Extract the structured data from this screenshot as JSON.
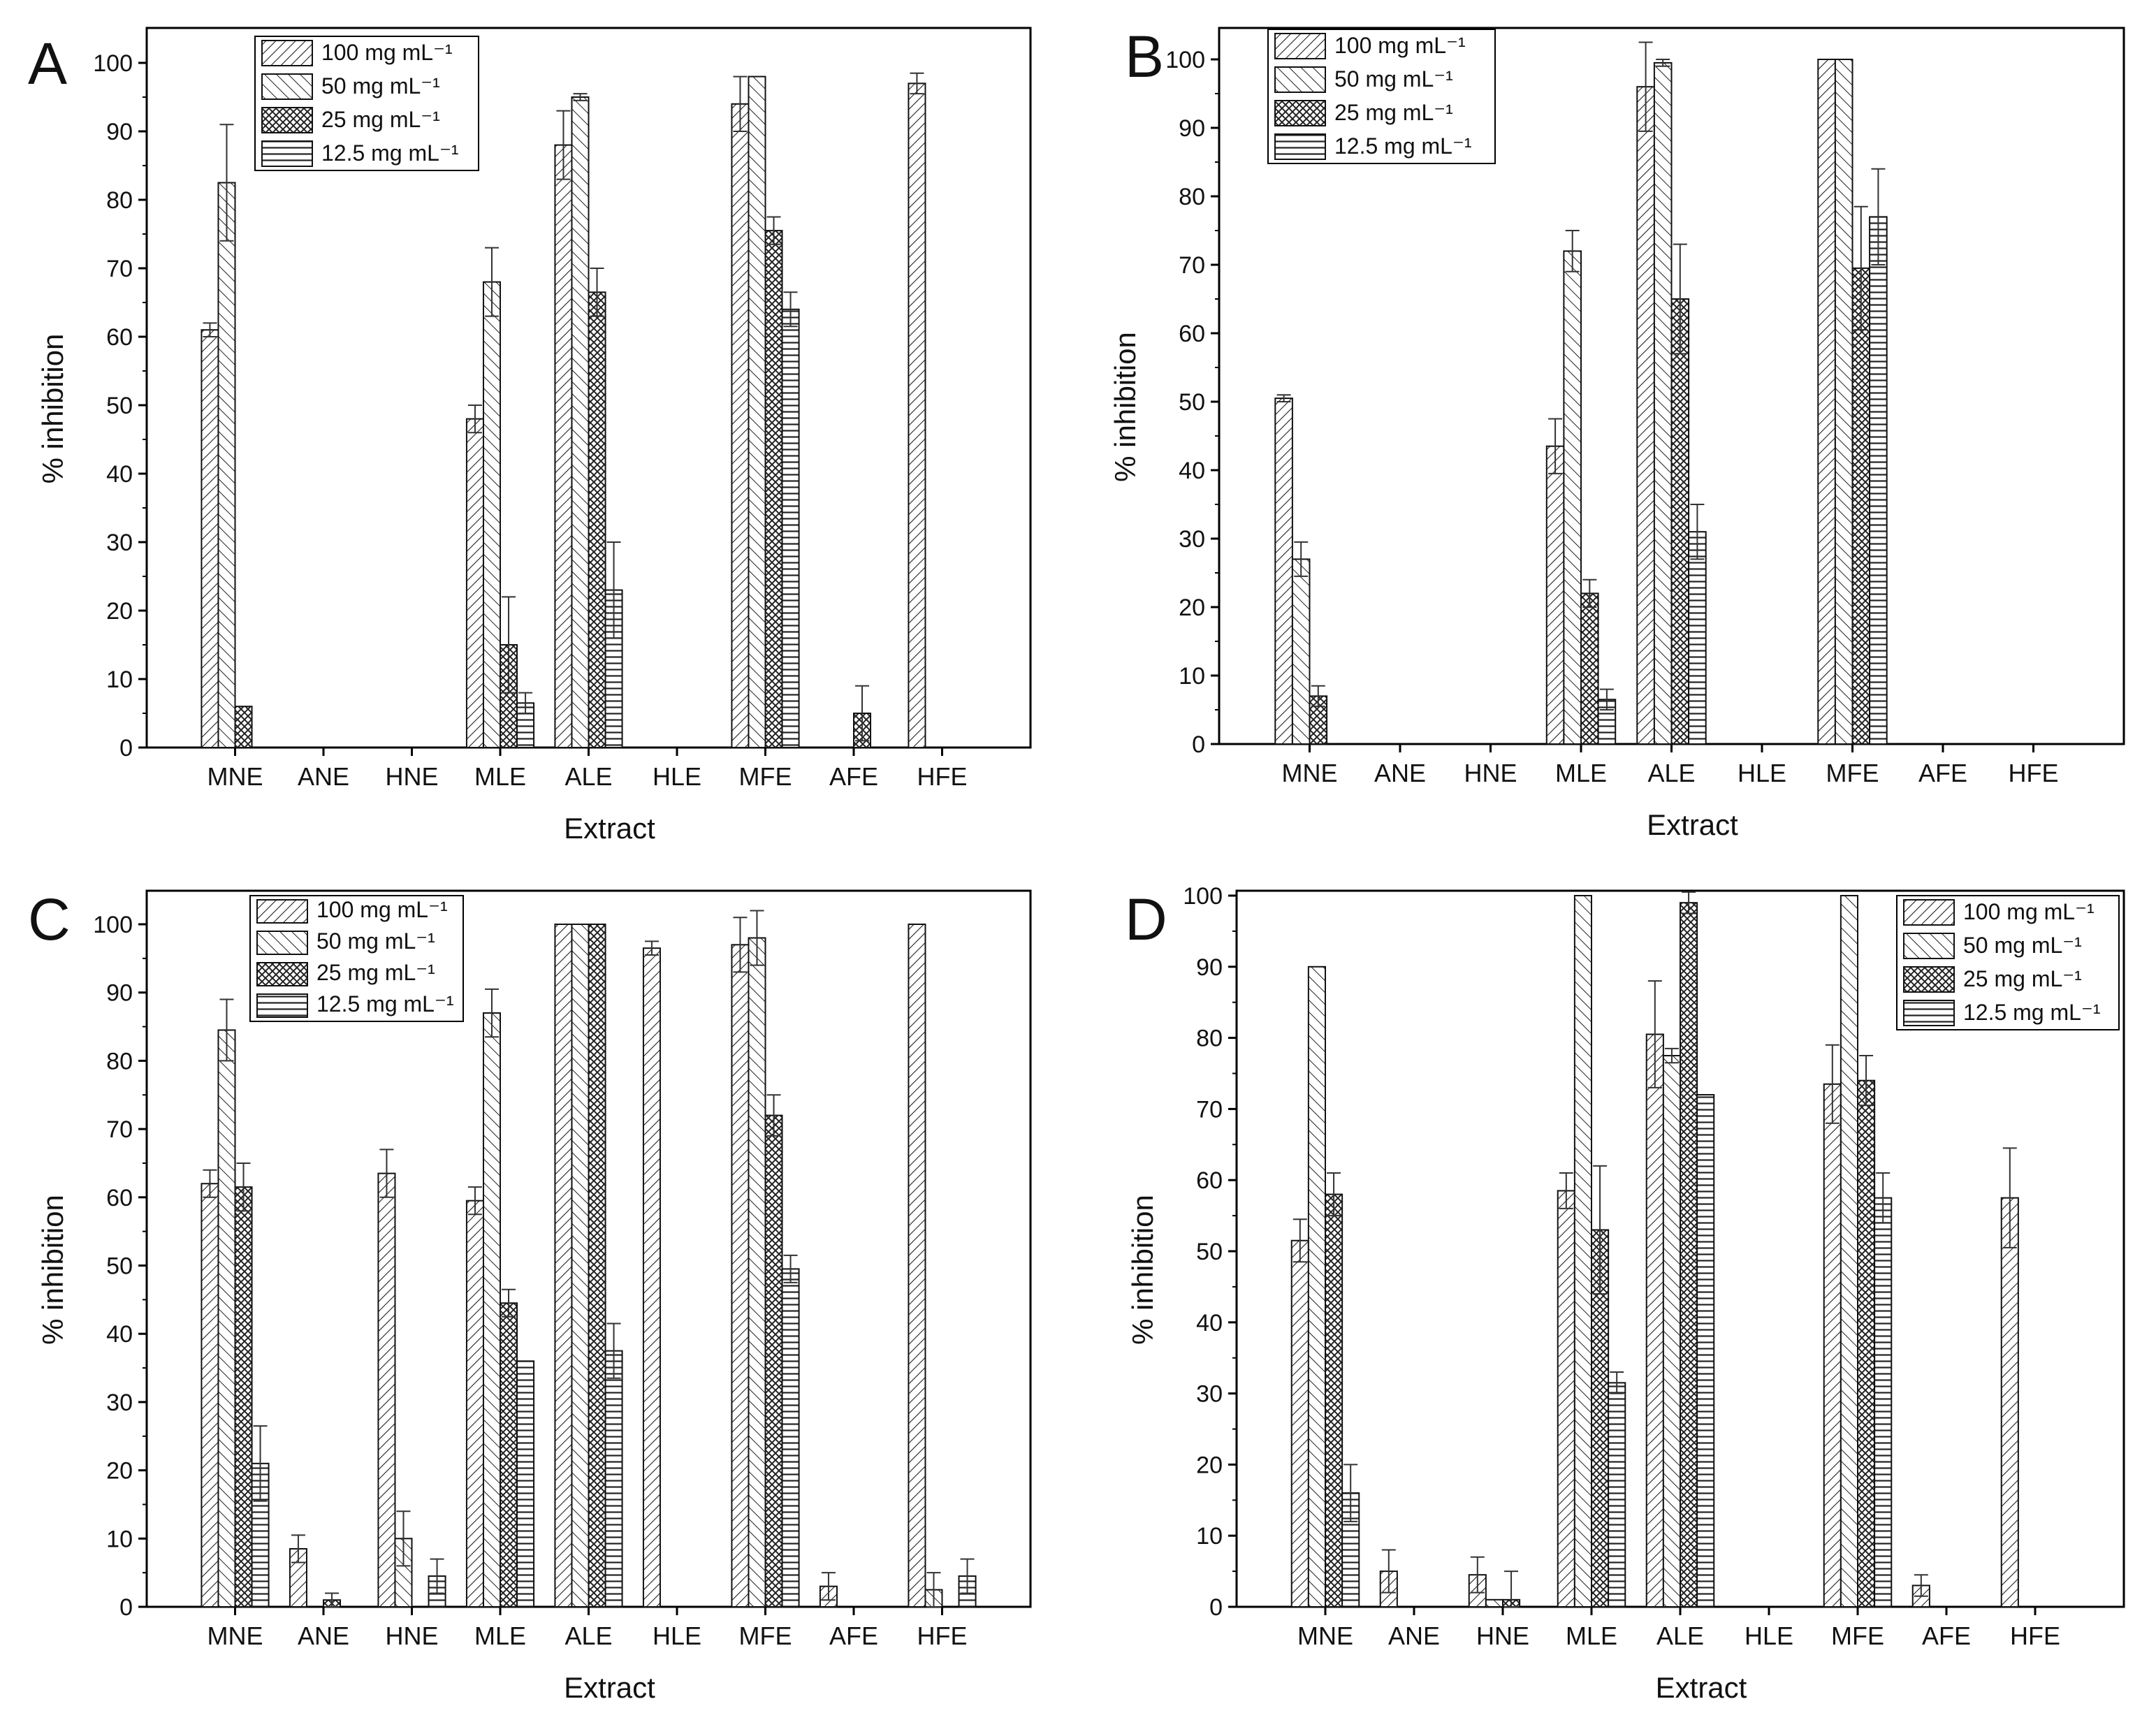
{
  "figure": {
    "axis": {
      "xlabel": "Extract",
      "ylabel": "% inhibition",
      "ylim": [
        0,
        100
      ],
      "yticks": [
        0,
        10,
        20,
        30,
        40,
        50,
        60,
        70,
        80,
        90,
        100
      ]
    },
    "categories": [
      "MNE",
      "ANE",
      "HNE",
      "MLE",
      "ALE",
      "HLE",
      "MFE",
      "AFE",
      "HFE"
    ],
    "legend": [
      "100 mg mL⁻¹",
      "50 mg mL⁻¹",
      "25 mg mL⁻¹",
      "12.5 mg mL⁻¹"
    ],
    "colors": {
      "bar_fill": "#ffffff",
      "hatch": "#222222",
      "axis": "#000000",
      "background": "#ffffff"
    }
  },
  "chart_data": [
    {
      "type": "bar",
      "panel": "A",
      "title": "",
      "xlabel": "Extract",
      "ylabel": "% inhibition",
      "ylim": [
        0,
        100
      ],
      "categories": [
        "MNE",
        "ANE",
        "HNE",
        "MLE",
        "ALE",
        "HLE",
        "MFE",
        "AFE",
        "HFE"
      ],
      "legend_position": "top-left",
      "series": [
        {
          "name": "100 mg mL⁻¹",
          "values": [
            61,
            0,
            0,
            48,
            88,
            0,
            94,
            0,
            97
          ],
          "errors": [
            1,
            0,
            0,
            2,
            5,
            0,
            4,
            0,
            1.5
          ]
        },
        {
          "name": "50 mg mL⁻¹",
          "values": [
            82.5,
            0,
            0,
            68,
            95,
            0,
            98,
            0,
            0
          ],
          "errors": [
            8.5,
            0,
            0,
            5,
            0.5,
            0,
            0,
            0,
            0
          ]
        },
        {
          "name": "25 mg mL⁻¹",
          "values": [
            6,
            0,
            0,
            15,
            66.5,
            0,
            75.5,
            5,
            0
          ],
          "errors": [
            0,
            0,
            0,
            7,
            3.5,
            0,
            2,
            4,
            0
          ]
        },
        {
          "name": "12.5 mg mL⁻¹",
          "values": [
            0,
            0,
            0,
            6.5,
            23,
            0,
            64,
            0,
            0
          ],
          "errors": [
            0,
            0,
            0,
            1.5,
            7,
            0,
            2.5,
            0,
            0
          ]
        }
      ]
    },
    {
      "type": "bar",
      "panel": "B",
      "title": "",
      "xlabel": "Extract",
      "ylabel": "% inhibition",
      "ylim": [
        0,
        100
      ],
      "categories": [
        "MNE",
        "ANE",
        "HNE",
        "MLE",
        "ALE",
        "HLE",
        "MFE",
        "AFE",
        "HFE"
      ],
      "legend_position": "top-left",
      "series": [
        {
          "name": "100 mg mL⁻¹",
          "values": [
            50.5,
            0,
            0,
            43.5,
            96,
            0,
            100,
            0,
            0
          ],
          "errors": [
            0.5,
            0,
            0,
            4,
            6.5,
            0,
            0,
            0,
            0
          ]
        },
        {
          "name": "50 mg mL⁻¹",
          "values": [
            27,
            0,
            0,
            72,
            99.5,
            0,
            100,
            0,
            0
          ],
          "errors": [
            2.5,
            0,
            0,
            3,
            0.5,
            0,
            0,
            0,
            0
          ]
        },
        {
          "name": "25 mg mL⁻¹",
          "values": [
            7,
            0,
            0,
            22,
            65,
            0,
            69.5,
            0,
            0
          ],
          "errors": [
            1.5,
            0,
            0,
            2,
            8,
            0,
            9,
            0,
            0
          ]
        },
        {
          "name": "12.5 mg mL⁻¹",
          "values": [
            0,
            0,
            0,
            6.5,
            31,
            0,
            77,
            0,
            0
          ],
          "errors": [
            0,
            0,
            0,
            1.5,
            4,
            0,
            7,
            0,
            0
          ]
        }
      ]
    },
    {
      "type": "bar",
      "panel": "C",
      "title": "",
      "xlabel": "Extract",
      "ylabel": "% inhibition",
      "ylim": [
        0,
        100
      ],
      "categories": [
        "MNE",
        "ANE",
        "HNE",
        "MLE",
        "ALE",
        "HLE",
        "MFE",
        "AFE",
        "HFE"
      ],
      "legend_position": "top-left",
      "series": [
        {
          "name": "100 mg mL⁻¹",
          "values": [
            62,
            8.5,
            63.5,
            59.5,
            100,
            96.5,
            97,
            3,
            100
          ],
          "errors": [
            2,
            2,
            3.5,
            2,
            0,
            1,
            4,
            2,
            0
          ]
        },
        {
          "name": "50 mg mL⁻¹",
          "values": [
            84.5,
            0,
            10,
            87,
            100,
            0,
            98,
            0,
            2.5
          ],
          "errors": [
            4.5,
            0,
            4,
            3.5,
            0,
            0,
            4,
            0,
            2.5
          ]
        },
        {
          "name": "25 mg mL⁻¹",
          "values": [
            61.5,
            1,
            0,
            44.5,
            100,
            0,
            72,
            0,
            0
          ],
          "errors": [
            3.5,
            1,
            0,
            2,
            0,
            0,
            3,
            0,
            0
          ]
        },
        {
          "name": "12.5 mg mL⁻¹",
          "values": [
            21,
            0,
            4.5,
            36,
            37.5,
            0,
            49.5,
            0,
            4.5
          ],
          "errors": [
            5.5,
            0,
            2.5,
            0,
            4,
            0,
            2,
            0,
            2.5
          ]
        }
      ]
    },
    {
      "type": "bar",
      "panel": "D",
      "title": "",
      "xlabel": "Extract",
      "ylabel": "% inhibition",
      "ylim": [
        0,
        100
      ],
      "categories": [
        "MNE",
        "ANE",
        "HNE",
        "MLE",
        "ALE",
        "HLE",
        "MFE",
        "AFE",
        "HFE"
      ],
      "legend_position": "top-right",
      "series": [
        {
          "name": "100 mg mL⁻¹",
          "values": [
            51.5,
            5,
            4.5,
            58.5,
            80.5,
            0,
            73.5,
            3,
            57.5
          ],
          "errors": [
            3,
            3,
            2.5,
            2.5,
            7.5,
            0,
            5.5,
            1.5,
            7
          ]
        },
        {
          "name": "50 mg mL⁻¹",
          "values": [
            90,
            0,
            1,
            100,
            77.5,
            0,
            100,
            0,
            0
          ],
          "errors": [
            0,
            0,
            0,
            0,
            1,
            0,
            0,
            0,
            0
          ]
        },
        {
          "name": "25 mg mL⁻¹",
          "values": [
            58,
            0,
            1,
            53,
            99,
            0,
            74,
            0,
            0
          ],
          "errors": [
            3,
            0,
            4,
            9,
            1.5,
            0,
            3.5,
            0,
            0
          ]
        },
        {
          "name": "12.5 mg mL⁻¹",
          "values": [
            16,
            0,
            0,
            31.5,
            72,
            0,
            57.5,
            0,
            0
          ],
          "errors": [
            4,
            0,
            0,
            1.5,
            0,
            0,
            3.5,
            0,
            0
          ]
        }
      ]
    }
  ]
}
